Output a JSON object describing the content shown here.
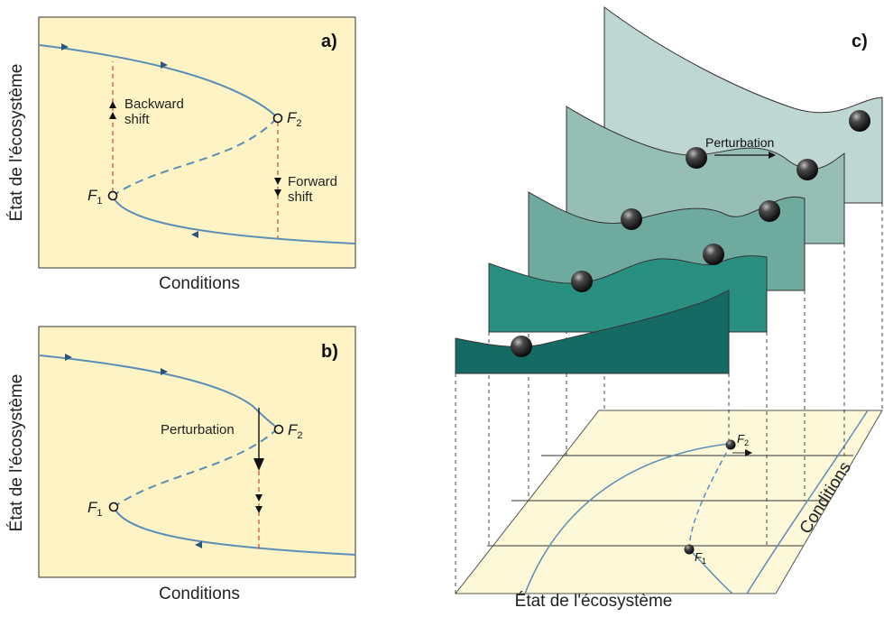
{
  "colors": {
    "panel_bg": "#fdf3c4",
    "curve": "#5b8fb6",
    "shift": "#c9463d",
    "layer1": "#bfd7d2",
    "layer2": "#96beb5",
    "layer3": "#6eaa9e",
    "layer4": "#298f80",
    "layer5": "#156b64",
    "plane": "#fcf8d8",
    "ball": "#1a1a1a"
  },
  "panel_a": {
    "label": "a)",
    "ylabel": "État de l'écosystème",
    "xlabel": "Conditions",
    "backward": [
      "Backward",
      "shift"
    ],
    "forward": [
      "Forward",
      "shift"
    ],
    "f1": "F",
    "f1_sub": "1",
    "f2": "F",
    "f2_sub": "2"
  },
  "panel_b": {
    "label": "b)",
    "ylabel": "État de l'écosystème",
    "xlabel": "Conditions",
    "perturbation": "Perturbation",
    "f1": "F",
    "f1_sub": "1",
    "f2": "F",
    "f2_sub": "2"
  },
  "panel_c": {
    "label": "c)",
    "perturbation": "Perturbation",
    "xlabel": "État de l'écosystème",
    "depth_label": "Conditions",
    "f1": "F",
    "f1_sub": "1",
    "f2": "F",
    "f2_sub": "2"
  }
}
